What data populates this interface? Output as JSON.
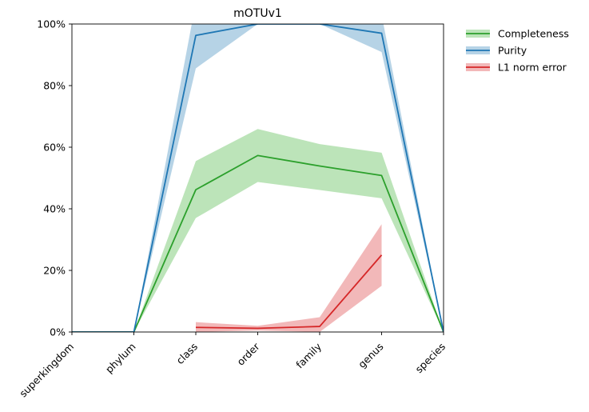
{
  "chart_data": {
    "type": "line",
    "title": "mOTUv1",
    "xlabel": "",
    "ylabel": "",
    "categories": [
      "superkingdom",
      "phylum",
      "class",
      "order",
      "family",
      "genus",
      "species"
    ],
    "ylim": [
      0,
      100
    ],
    "yticks": [
      0,
      20,
      40,
      60,
      80,
      100
    ],
    "ytick_labels": [
      "0%",
      "20%",
      "40%",
      "60%",
      "80%",
      "100%"
    ],
    "grid": false,
    "legend_position": "outside-top-right",
    "series": [
      {
        "name": "Completeness",
        "color": "#2ca02c",
        "band_color": "#98d594",
        "values": [
          0,
          0,
          46.2,
          57.3,
          53.9,
          50.8,
          0
        ],
        "lower": [
          0,
          0,
          37.0,
          48.7,
          46.1,
          43.4,
          0
        ],
        "upper": [
          0,
          0,
          55.5,
          65.9,
          61.0,
          58.2,
          0
        ]
      },
      {
        "name": "Purity",
        "color": "#1f77b4",
        "band_color": "#8fbbd9",
        "values": [
          0,
          0,
          96.3,
          100,
          100,
          97.0,
          0
        ],
        "lower": [
          0,
          0,
          85.6,
          100,
          100,
          90.9,
          0
        ],
        "upper": [
          0,
          0,
          107,
          107,
          107,
          103,
          0
        ]
      },
      {
        "name": "L1 norm error",
        "color": "#d62728",
        "band_color": "#eb9293",
        "start_index": 2,
        "end_index": 5,
        "values": [
          null,
          null,
          1.5,
          1.2,
          1.8,
          25.0,
          null
        ],
        "lower": [
          null,
          null,
          0,
          0.5,
          0,
          15.0,
          null
        ],
        "upper": [
          null,
          null,
          3.2,
          2.0,
          4.8,
          35.0,
          null
        ]
      }
    ]
  }
}
